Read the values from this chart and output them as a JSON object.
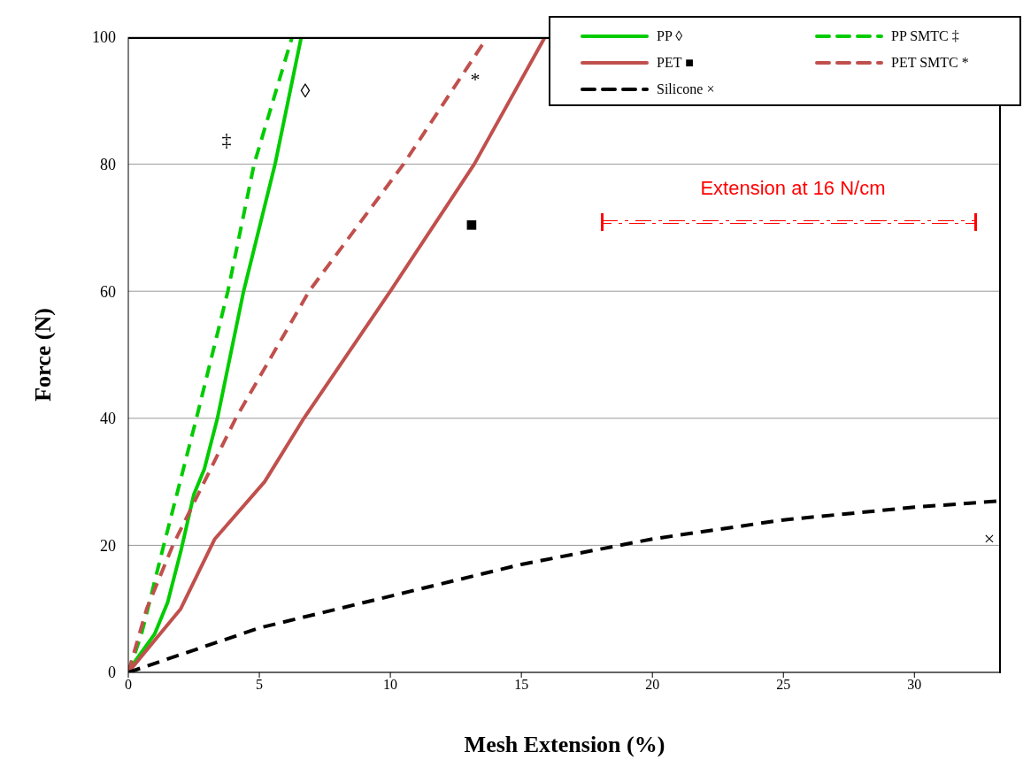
{
  "chart_data": {
    "type": "line",
    "xlabel": "Mesh Extension (%)",
    "ylabel": "Force (N)",
    "xlim": [
      0,
      33.3
    ],
    "xticks": [
      0,
      5,
      10,
      15,
      20,
      25,
      30
    ],
    "ylim": [
      0,
      100
    ],
    "yticks": [
      0,
      20,
      40,
      60,
      80,
      100
    ],
    "grid": "y",
    "legend": "top right",
    "marker": "none",
    "series": [
      {
        "name": "PP ◊",
        "color": "#00cc00",
        "line_style": "solid",
        "x": [
          0,
          0.3,
          1,
          1.5,
          2,
          2.5,
          2.9,
          3.4,
          4.4,
          5.6,
          6.6
        ],
        "values": [
          0,
          2,
          6,
          11,
          19,
          28,
          32,
          40,
          60,
          80,
          100
        ]
      },
      {
        "name": "PP SMTC ‡",
        "color": "#00cc00",
        "line_style": "dashed",
        "x": [
          0,
          0.5,
          1.35,
          2.6,
          3.8,
          4.8,
          6.25
        ],
        "values": [
          0,
          6,
          20,
          40,
          60,
          80,
          100
        ]
      },
      {
        "name": "PET ■",
        "color": "#c0504d",
        "line_style": "solid",
        "x": [
          0,
          1,
          2,
          3.3,
          5.2,
          6.7,
          10,
          13.2,
          15.9
        ],
        "values": [
          0,
          5,
          10,
          21,
          30,
          40,
          60,
          80,
          100
        ]
      },
      {
        "name": "PET SMTC *",
        "color": "#c0504d",
        "line_style": "dashed",
        "x": [
          0,
          0.7,
          1.7,
          4.1,
          6.9,
          10.5,
          13.7
        ],
        "values": [
          0,
          10,
          20,
          40,
          60,
          80,
          100
        ]
      },
      {
        "name": "Silicone ×",
        "color": "#000000",
        "line_style": "dashed",
        "x": [
          0,
          5,
          10,
          15,
          20,
          25,
          30,
          33.3
        ],
        "values": [
          0,
          7,
          12,
          17,
          21,
          24,
          26,
          27
        ]
      }
    ],
    "annotations": [
      "◊",
      "‡",
      "*",
      "■",
      "×",
      "Extension at 16 N/cm"
    ]
  }
}
